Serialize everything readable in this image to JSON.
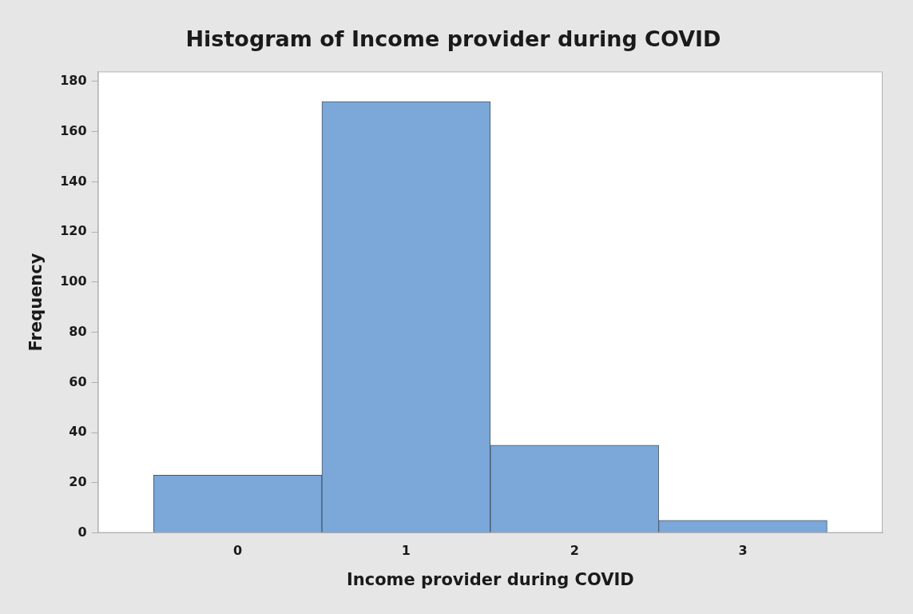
{
  "chart_data": {
    "type": "histogram",
    "title": "Histogram of Income provider during COVID",
    "xlabel": "Income provider during COVID",
    "ylabel": "Frequency",
    "bins": [
      -0.5,
      0.5,
      1.5,
      2.5,
      3.5
    ],
    "values": [
      23,
      172,
      35,
      5
    ],
    "color": "#7ba7d9",
    "xlim": [
      -0.83,
      3.83
    ],
    "xticks": [
      0,
      1,
      2,
      3
    ],
    "ylim": [
      0,
      184
    ],
    "yticks": [
      0,
      20,
      40,
      60,
      80,
      100,
      120,
      140,
      160,
      180
    ],
    "grid": false,
    "legend": false
  }
}
